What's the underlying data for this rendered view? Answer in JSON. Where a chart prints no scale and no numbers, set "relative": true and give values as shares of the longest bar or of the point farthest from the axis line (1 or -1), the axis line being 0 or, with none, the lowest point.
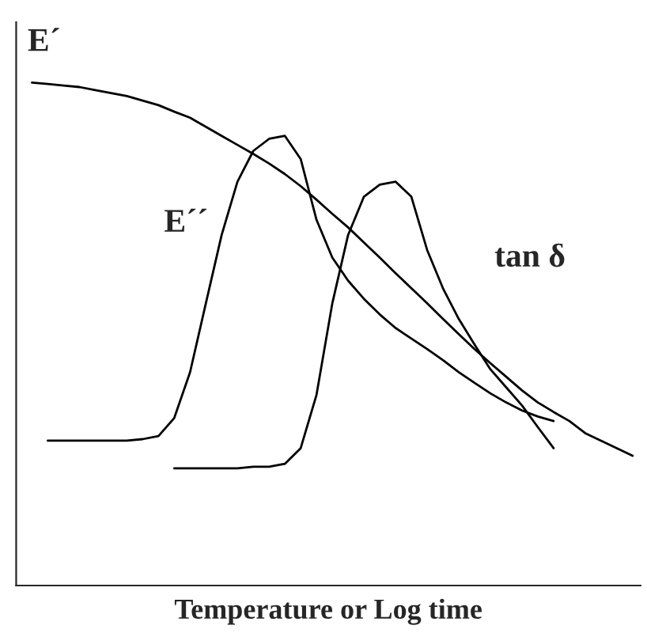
{
  "chart_data": {
    "type": "line",
    "relative": true,
    "xlabel": "Temperature or Log time",
    "legend": false,
    "marker": "none",
    "line_style": "solid",
    "categories": [
      null,
      null,
      null,
      null,
      null,
      null,
      null,
      null,
      null,
      null,
      null,
      null,
      null,
      null,
      null,
      null,
      null,
      null,
      null,
      null,
      null,
      null,
      null,
      null,
      null,
      null,
      null,
      null,
      null,
      null,
      null,
      null,
      null,
      null,
      null,
      null,
      null,
      null,
      null
    ],
    "series": [
      {
        "name": "E´",
        "color": "#000000",
        "values": [
          1.0,
          0.997,
          0.994,
          0.991,
          0.985,
          0.979,
          0.973,
          0.964,
          0.955,
          0.942,
          0.93,
          0.912,
          0.894,
          0.876,
          0.858,
          0.839,
          0.818,
          0.794,
          0.767,
          0.739,
          0.712,
          0.682,
          0.652,
          0.621,
          0.591,
          0.561,
          0.53,
          0.5,
          0.47,
          0.442,
          0.415,
          0.388,
          0.364,
          0.345,
          0.327,
          0.303,
          0.288,
          0.273,
          0.258
        ]
      },
      {
        "name": "E´´",
        "color": "#000000",
        "values": [
          null,
          0.288,
          0.288,
          0.288,
          0.288,
          0.288,
          0.288,
          0.291,
          0.297,
          0.333,
          0.424,
          0.561,
          0.697,
          0.803,
          0.864,
          0.888,
          0.894,
          0.848,
          0.727,
          0.652,
          0.606,
          0.57,
          0.539,
          0.512,
          0.491,
          0.47,
          0.448,
          0.424,
          0.403,
          0.382,
          0.364,
          0.348,
          0.336,
          0.327,
          null,
          null,
          null,
          null,
          null
        ]
      },
      {
        "name": "tan δ",
        "color": "#000000",
        "values": [
          null,
          null,
          null,
          null,
          null,
          null,
          null,
          null,
          null,
          0.233,
          0.233,
          0.233,
          0.233,
          0.233,
          0.236,
          0.236,
          0.242,
          0.273,
          0.379,
          0.561,
          0.697,
          0.773,
          0.797,
          0.803,
          0.773,
          0.667,
          0.591,
          0.53,
          0.479,
          0.43,
          0.394,
          0.358,
          0.315,
          0.273,
          null,
          null,
          null,
          null,
          null
        ]
      }
    ]
  }
}
